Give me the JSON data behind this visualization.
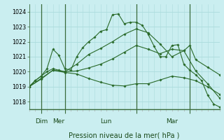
{
  "bg_color": "#caeef0",
  "grid_color": "#aadcdc",
  "line_color": "#2a6a2a",
  "xlabel": "Pression niveau de la mer( hPa )",
  "ylim": [
    1017.5,
    1024.5
  ],
  "xlim": [
    0,
    32
  ],
  "yticks": [
    1018,
    1019,
    1020,
    1021,
    1022,
    1023,
    1024
  ],
  "vlines": [
    2,
    6,
    18,
    27
  ],
  "day_labels": [
    {
      "x": 1.0,
      "text": "Dim"
    },
    {
      "x": 4.0,
      "text": "Mer"
    },
    {
      "x": 12.0,
      "text": "Lun"
    },
    {
      "x": 23.0,
      "text": "Mar"
    }
  ],
  "lines": [
    {
      "x": [
        0,
        1,
        2,
        3,
        4,
        5,
        6,
        7,
        8,
        9,
        10,
        11,
        12,
        13,
        14,
        15,
        16,
        17,
        18,
        19,
        20,
        21,
        22,
        23,
        24,
        25,
        26,
        27,
        28,
        29,
        30,
        31,
        32
      ],
      "y": [
        1019.0,
        1019.4,
        1019.7,
        1020.2,
        1021.5,
        1021.1,
        1020.2,
        1020.1,
        1021.0,
        1021.6,
        1022.0,
        1022.3,
        1022.7,
        1022.8,
        1023.8,
        1023.85,
        1023.2,
        1023.3,
        1023.3,
        1023.1,
        1022.5,
        1021.7,
        1021.0,
        1021.0,
        1021.75,
        1021.8,
        1020.5,
        1020.1,
        1019.8,
        1019.4,
        1018.45,
        1017.85,
        1017.65
      ]
    },
    {
      "x": [
        0,
        1,
        2,
        3,
        4,
        5,
        6,
        8,
        10,
        12,
        14,
        16,
        18,
        20,
        22,
        24,
        26,
        27,
        28,
        30,
        32
      ],
      "y": [
        1019.0,
        1019.4,
        1019.7,
        1020.0,
        1020.2,
        1020.1,
        1020.0,
        1020.5,
        1021.15,
        1021.55,
        1022.0,
        1022.5,
        1022.85,
        1022.6,
        1021.85,
        1021.0,
        1021.4,
        1021.75,
        1020.8,
        1020.3,
        1019.8
      ]
    },
    {
      "x": [
        0,
        2,
        4,
        6,
        8,
        10,
        12,
        14,
        16,
        18,
        20,
        22,
        24,
        26,
        28,
        30,
        32
      ],
      "y": [
        1019.0,
        1019.5,
        1020.1,
        1020.0,
        1020.05,
        1020.25,
        1020.5,
        1020.85,
        1021.3,
        1021.75,
        1021.5,
        1021.2,
        1021.5,
        1021.4,
        1020.05,
        1019.2,
        1018.25
      ]
    },
    {
      "x": [
        0,
        2,
        4,
        6,
        8,
        10,
        12,
        14,
        16,
        18,
        20,
        22,
        24,
        26,
        28,
        30,
        32
      ],
      "y": [
        1019.0,
        1019.55,
        1020.1,
        1019.95,
        1019.85,
        1019.55,
        1019.3,
        1019.1,
        1019.05,
        1019.2,
        1019.2,
        1019.45,
        1019.7,
        1019.6,
        1019.4,
        1019.0,
        1018.5
      ]
    }
  ],
  "xtick_minor_interval": 1,
  "figsize": [
    3.2,
    2.0
  ],
  "dpi": 100
}
